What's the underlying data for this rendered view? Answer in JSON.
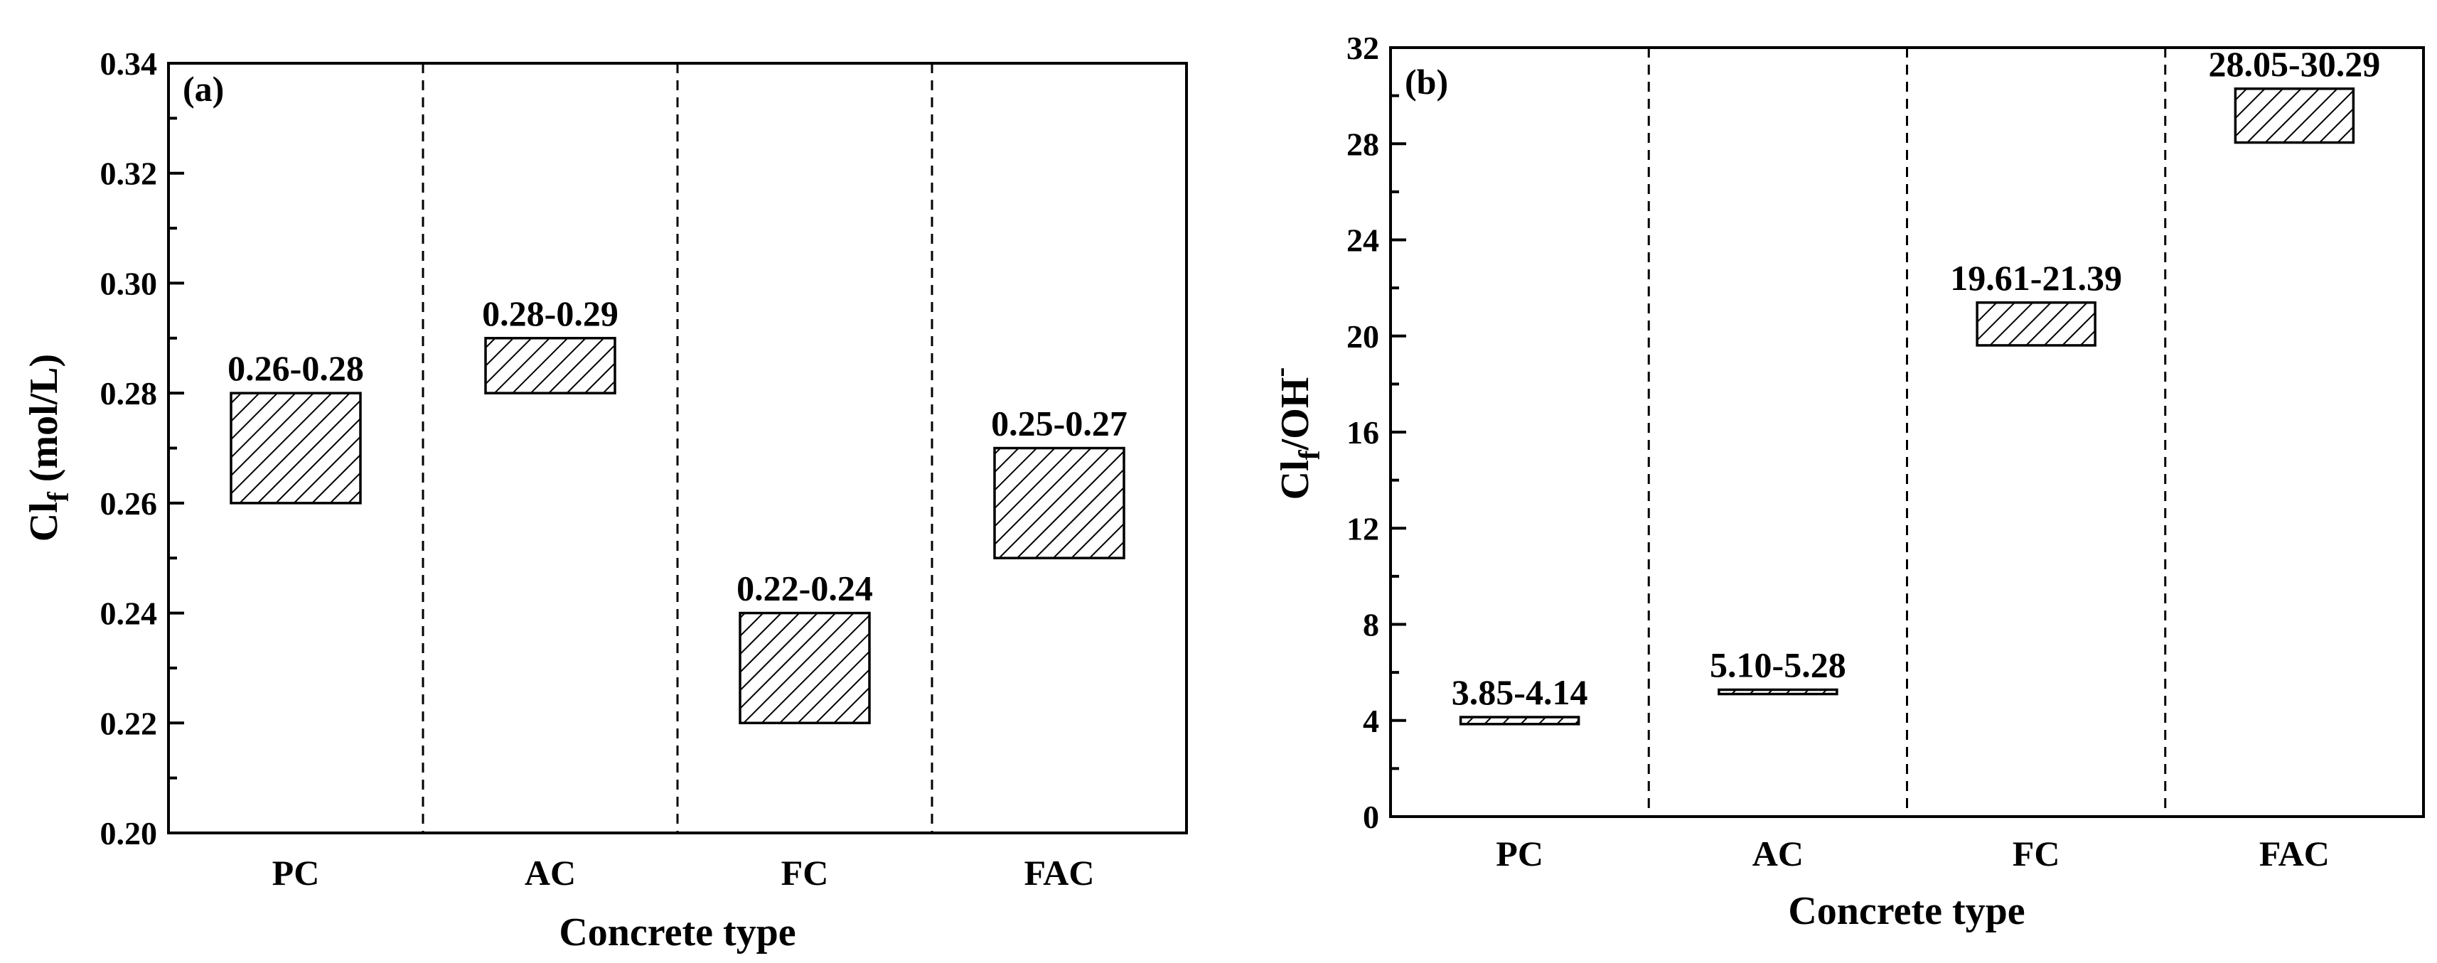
{
  "chart_data": [
    {
      "type": "bar",
      "subtype": "floating-range",
      "panel_label": "(a)",
      "categories": [
        "PC",
        "AC",
        "FC",
        "FAC"
      ],
      "ranges": [
        [
          0.26,
          0.28
        ],
        [
          0.28,
          0.29
        ],
        [
          0.22,
          0.24
        ],
        [
          0.25,
          0.27
        ]
      ],
      "range_labels": [
        "0.26-0.28",
        "0.28-0.29",
        "0.22-0.24",
        "0.25-0.27"
      ],
      "xlabel": "Concrete type",
      "ylabel": {
        "main": "Cl",
        "sub": "f",
        "rest": " (mol/L)"
      },
      "ylim": [
        0.2,
        0.34
      ],
      "yticks": [
        "0.20",
        "0.22",
        "0.24",
        "0.26",
        "0.28",
        "0.30",
        "0.32",
        "0.34"
      ],
      "grid": false,
      "separators": "dashed"
    },
    {
      "type": "bar",
      "subtype": "floating-range",
      "panel_label": "(b)",
      "categories": [
        "PC",
        "AC",
        "FC",
        "FAC"
      ],
      "ranges": [
        [
          3.85,
          4.14
        ],
        [
          5.1,
          5.28
        ],
        [
          19.61,
          21.39
        ],
        [
          28.05,
          30.29
        ]
      ],
      "range_labels": [
        "3.85-4.14",
        "5.10-5.28",
        "19.61-21.39",
        "28.05-30.29"
      ],
      "xlabel": "Concrete type",
      "ylabel": {
        "main": "Cl",
        "sub": "f",
        "rest": "/OH",
        "sup": "-"
      },
      "ylim": [
        0,
        32
      ],
      "yticks": [
        "0",
        "4",
        "8",
        "12",
        "16",
        "20",
        "24",
        "28",
        "32"
      ],
      "grid": false,
      "separators": "dashed"
    }
  ]
}
